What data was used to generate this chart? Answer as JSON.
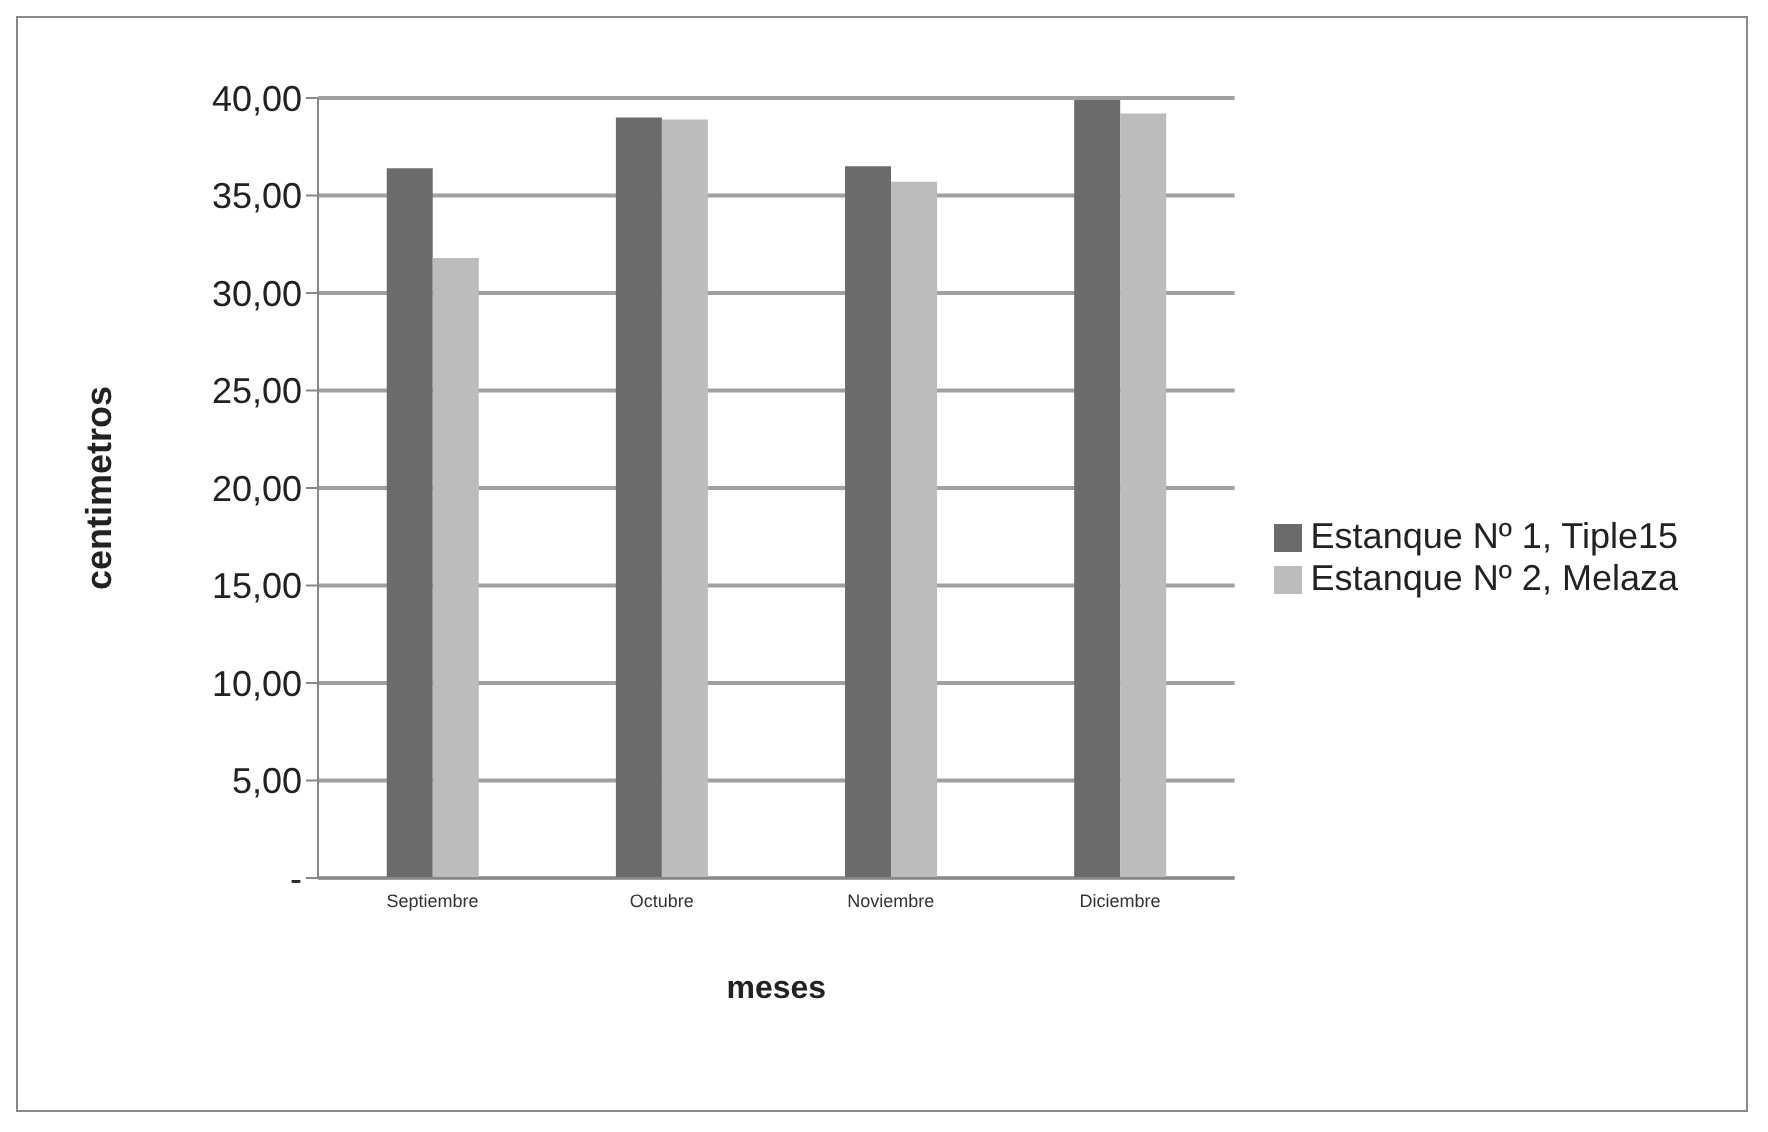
{
  "chart_data": {
    "type": "bar",
    "xlabel": "meses",
    "ylabel": "centimetros",
    "categories": [
      "Septiembre",
      "Octubre",
      "Noviembre",
      "Diciembre"
    ],
    "series": [
      {
        "name": "Estanque Nº 1, Tiple15",
        "color": "#6b6b6b",
        "values": [
          36.4,
          39.0,
          36.5,
          39.9
        ]
      },
      {
        "name": "Estanque Nº 2, Melaza",
        "color": "#bcbcbc",
        "values": [
          31.8,
          38.9,
          35.7,
          39.2
        ]
      }
    ],
    "ylim": [
      0,
      40
    ],
    "yticks": [
      {
        "value": 0,
        "label": "-"
      },
      {
        "value": 5,
        "label": "5,00"
      },
      {
        "value": 10,
        "label": "10,00"
      },
      {
        "value": 15,
        "label": "15,00"
      },
      {
        "value": 20,
        "label": "20,00"
      },
      {
        "value": 25,
        "label": "25,00"
      },
      {
        "value": 30,
        "label": "30,00"
      },
      {
        "value": 35,
        "label": "35,00"
      },
      {
        "value": 40,
        "label": "40,00"
      }
    ],
    "grid": "y",
    "legend": "right"
  }
}
